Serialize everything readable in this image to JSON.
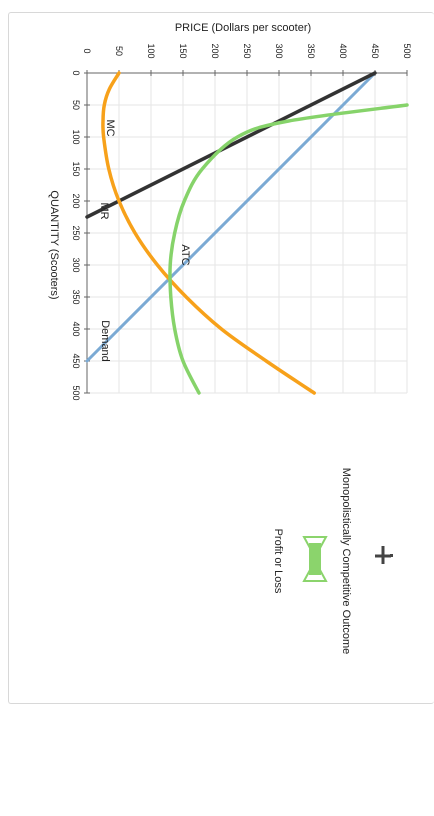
{
  "chart_data": {
    "type": "line",
    "xlabel": "QUANTITY (Scooters)",
    "ylabel": "PRICE (Dollars per scooter)",
    "xlim": [
      0,
      500
    ],
    "ylim": [
      0,
      500
    ],
    "x_ticks": [
      "0",
      "50",
      "100",
      "150",
      "200",
      "250",
      "300",
      "350",
      "400",
      "450",
      "500"
    ],
    "y_ticks": [
      "0",
      "50",
      "100",
      "150",
      "200",
      "250",
      "300",
      "350",
      "400",
      "450",
      "500"
    ],
    "grid": true,
    "series": [
      {
        "name": "Demand",
        "color": "#7baad4",
        "points": [
          [
            0,
            450
          ],
          [
            450,
            0
          ]
        ]
      },
      {
        "name": "MR",
        "color": "#333333",
        "points": [
          [
            0,
            450
          ],
          [
            225,
            0
          ]
        ]
      },
      {
        "name": "MC",
        "color": "#f7a11a",
        "points": [
          [
            0,
            50
          ],
          [
            25,
            35
          ],
          [
            50,
            27
          ],
          [
            75,
            25
          ],
          [
            100,
            26
          ],
          [
            150,
            34
          ],
          [
            200,
            50
          ],
          [
            250,
            75
          ],
          [
            300,
            110
          ],
          [
            350,
            155
          ],
          [
            400,
            210
          ],
          [
            450,
            280
          ],
          [
            500,
            355
          ]
        ]
      },
      {
        "name": "ATC",
        "color": "#86d36a",
        "points": [
          [
            50,
            500
          ],
          [
            75,
            315
          ],
          [
            100,
            235
          ],
          [
            150,
            180
          ],
          [
            200,
            152
          ],
          [
            250,
            137
          ],
          [
            300,
            130
          ],
          [
            350,
            131
          ],
          [
            400,
            137
          ],
          [
            450,
            150
          ],
          [
            500,
            175
          ]
        ]
      }
    ]
  },
  "legend": {
    "title": "Monopolistically Competitive Outcome",
    "item_label": "Profit or Loss",
    "item_color": "#8bd46c"
  },
  "move_icon": "move-icon"
}
